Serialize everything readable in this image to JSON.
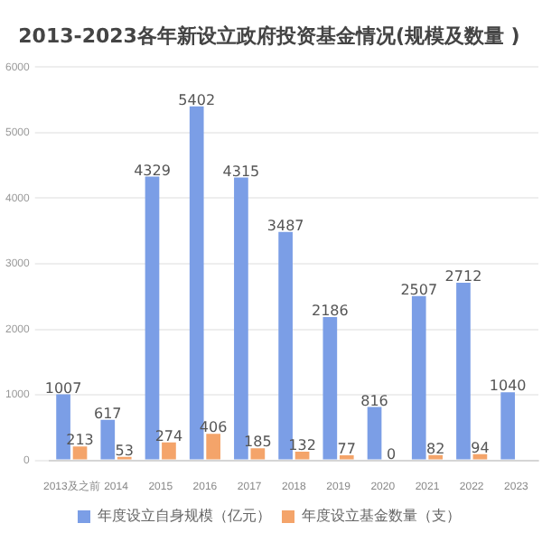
{
  "chart_data": {
    "type": "bar",
    "title": "2013-2023各年新设立政府投资基金情况(规模及数量 )",
    "categories": [
      "2013及之前",
      "2014",
      "2015",
      "2016",
      "2017",
      "2018",
      "2019",
      "2020",
      "2021",
      "2022",
      "2023"
    ],
    "series": [
      {
        "name": "年度设立自身规模（亿元）",
        "color": "#7b9ee6",
        "values": [
          1007,
          617,
          4329,
          5402,
          4315,
          3487,
          2186,
          816,
          2507,
          2712,
          1040
        ]
      },
      {
        "name": "年度设立基金数量（支）",
        "color": "#f4a46a",
        "values": [
          213,
          53,
          274,
          406,
          185,
          132,
          77,
          0,
          82,
          94,
          null
        ]
      }
    ],
    "ylim": [
      0,
      6000
    ],
    "yticks": [
      0,
      1000,
      2000,
      3000,
      4000,
      5000,
      6000
    ],
    "grid": "y",
    "legend": "bottom",
    "data_labels": true
  }
}
